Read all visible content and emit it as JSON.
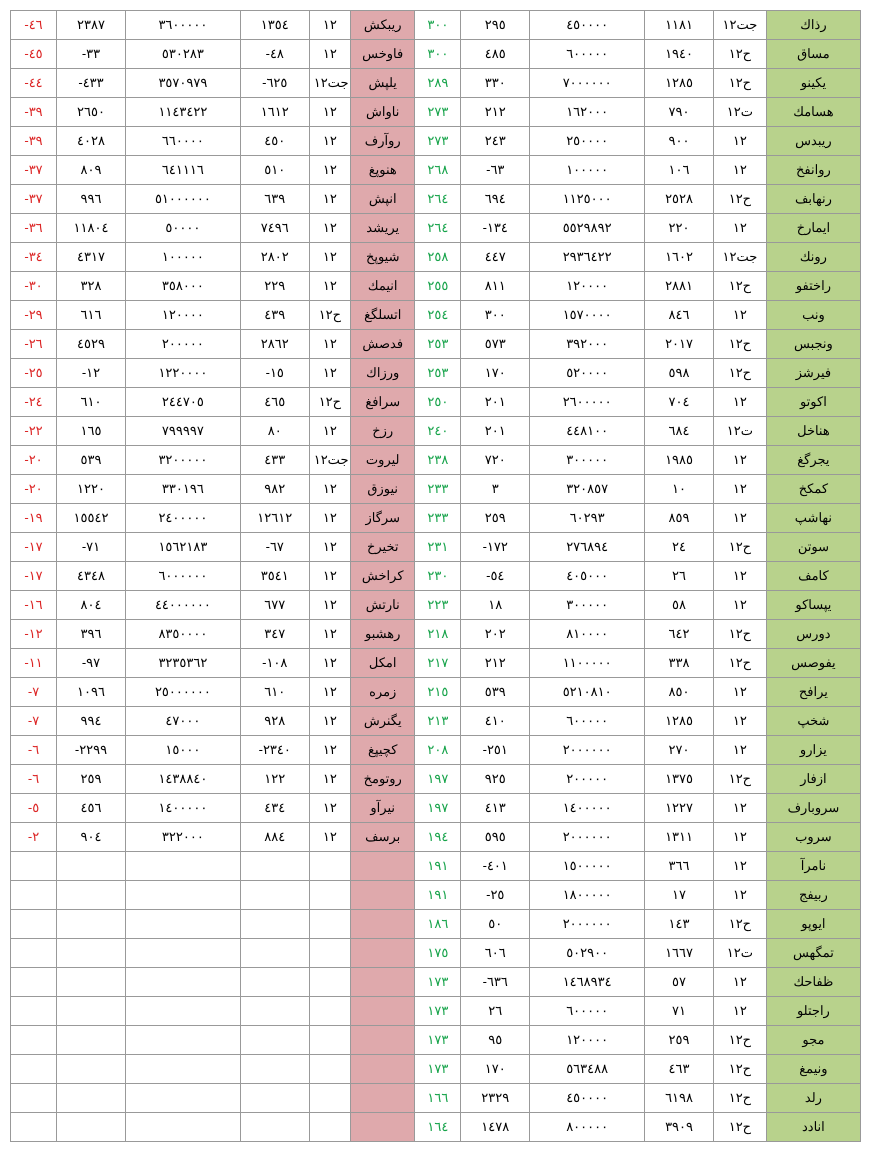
{
  "colors": {
    "name_r_bg": "#b8d28c",
    "name_l_bg": "#dfa9ac",
    "green": "#16a34a",
    "red": "#dc2626",
    "border": "#999999",
    "bg": "#ffffff"
  },
  "rows": [
    {
      "r": [
        "كاذر",
        "١٢تج",
        "١١٨١",
        "٤٥٠٠٠٠",
        "٢٩٥",
        "٣٠٠"
      ],
      "l": [
        "شكبير",
        "١٢",
        "١٣٥٤",
        "٣٦٠٠٠٠٠",
        "٢٣٨٧",
        "-٤٦"
      ]
    },
    {
      "r": [
        "قاسم",
        "١٢ح",
        "١٩٤٠",
        "٦٠٠٠٠٠",
        "٤٨٥",
        "٣٠٠"
      ],
      "l": [
        "سخواف",
        "١٢",
        "-٤٨",
        "٥٣٠٢٨٣",
        "-٣٣",
        "-٤٥"
      ]
    },
    {
      "r": [
        "ونيكي",
        "١٢ح",
        "١٢٨٥",
        "٧٠٠٠٠٠٠",
        "٣٣٠",
        "٢٨٩"
      ],
      "l": [
        "شپلي",
        "١٢تج",
        "-٦٢٥",
        "٣٥٧٠٩٧٩",
        "-٤٣٣",
        "-٤٤"
      ]
    },
    {
      "r": [
        "كماسه",
        "١٢ت",
        "٧٩٠",
        "١٦٢٠٠٠",
        "٢١٢",
        "٢٧٣"
      ],
      "l": [
        "شاوان",
        "١٢",
        "١٦١٢",
        "١١٤٣٤٢٢",
        "٢٦٥٠",
        "-٣٩"
      ]
    },
    {
      "r": [
        "سدبير",
        "١٢",
        "٩٠٠",
        "٢٥٠٠٠٠",
        "٢٤٣",
        "٢٧٣"
      ],
      "l": [
        "فرآور",
        "١٢",
        "٤٥٠",
        "٦٦٠٠٠٠",
        "٤٠٢٨",
        "-٣٩"
      ]
    },
    {
      "r": [
        "خفناور",
        "١٢",
        "١٠٦",
        "١٠٠٠٠٠",
        "-٦٣",
        "٢٦٨"
      ],
      "l": [
        "غپونه",
        "١٢",
        "٥١٠",
        "٦٤١١١٦",
        "٨٠٩",
        "-٣٧"
      ]
    },
    {
      "r": [
        "فباهنر",
        "١٢ح",
        "٢٥٢٨",
        "١١٢٥٠٠٠",
        "٦٩٤",
        "٢٦٤"
      ],
      "l": [
        "شپنا",
        "١٢",
        "٦٣٩",
        "٥١٠٠٠٠٠٠",
        "٩٩٦",
        "-٣٧"
      ]
    },
    {
      "r": [
        "خراميا",
        "١٢",
        "٢٢٠",
        "٥٥٢٩٨٩٢",
        "-١٣٤",
        "٢٦٤"
      ],
      "l": [
        "دشيري",
        "١٢",
        "٧٤٩٦",
        "٥٠٠٠٠",
        "١١٨٠٤",
        "-٣٦"
      ]
    },
    {
      "r": [
        "كنور",
        "١٢تج",
        "١٦٠٢",
        "٢٩٣٦٤٢٢",
        "٤٤٧",
        "٢٥٨"
      ],
      "l": [
        "خپويش",
        "١٢",
        "٢٨٠٢",
        "١٠٠٠٠٠",
        "٤٣١٧",
        "-٣٤"
      ]
    },
    {
      "r": [
        "وفتخار",
        "١٢ح",
        "٢٨٨١",
        "١٢٠٠٠٠",
        "٨١١",
        "٢٥٥"
      ],
      "l": [
        "كمينا",
        "١٢",
        "٢٢٩",
        "٣٥٨٠٠٠",
        "٣٢٨",
        "-٣٠"
      ]
    },
    {
      "r": [
        "بنو",
        "١٢",
        "٨٤٦",
        "١٥٧٠٠٠٠",
        "٣٠٠",
        "٢٥٤"
      ],
      "l": [
        "غگلستا",
        "١٢ح",
        "٤٣٩",
        "١٢٠٠٠٠",
        "٦١٦",
        "-٢٩"
      ]
    },
    {
      "r": [
        "سبجنو",
        "١٢ح",
        "٢٠١٧",
        "٣٩٢٠٠٠",
        "٥٧٣",
        "٢٥٣"
      ],
      "l": [
        "شصدف",
        "١٢",
        "٢٨٦٢",
        "٢٠٠٠٠٠",
        "٤٥٢٩",
        "-٢٦"
      ]
    },
    {
      "r": [
        "زشريف",
        "١٢ح",
        "٥٩٨",
        "٥٢٠٠٠٠",
        "١٧٠",
        "٢٥٣"
      ],
      "l": [
        "كازرو",
        "١٢",
        "-١٥",
        "١٢٢٠٠٠٠",
        "-١٢",
        "-٢٥"
      ]
    },
    {
      "r": [
        "وتوكا",
        "١٢",
        "٧٠٤",
        "٢٦٠٠٠٠٠",
        "٢٠١",
        "٢٥٠"
      ],
      "l": [
        "غفارس",
        "١٢ح",
        "٤٦٥",
        "٢٤٤٧٠٥",
        "٦١٠",
        "-٢٤"
      ]
    },
    {
      "r": [
        "لخانه",
        "١٢ت",
        "٦٨٤",
        "٤٤٨١٠٠",
        "٢٠١",
        "٢٤٠"
      ],
      "l": [
        "خزر",
        "١٢",
        "٨٠",
        "٧٩٩٩٩٧",
        "١٦٥",
        "-٢٢"
      ]
    },
    {
      "r": [
        "غگرجي",
        "١٢",
        "١٩٨٥",
        "٣٠٠٠٠٠",
        "٧٢٠",
        "٢٣٨"
      ],
      "l": [
        "توريل",
        "١٢تج",
        "٤٣٣",
        "٣٢٠٠٠٠٠",
        "٥٣٩",
        "-٢٠"
      ]
    },
    {
      "r": [
        "خكمك",
        "١٢",
        "١٠",
        "٣٢٠٨٥٧",
        "٣",
        "٢٣٣"
      ],
      "l": [
        "قزوين",
        "١٢",
        "٩٨٢",
        "٣٣٠١٩٦",
        "١٢٢٠",
        "-٢٠"
      ]
    },
    {
      "r": [
        "پشاهن",
        "١٢",
        "٨٥٩",
        "٦٠٢٩٣",
        "٢٥٩",
        "٢٣٣"
      ],
      "l": [
        "زاگرس",
        "١٢",
        "١٢٦١٢",
        "٢٤٠٠٠٠٠",
        "١٥٥٤٢",
        "-١٩"
      ]
    },
    {
      "r": [
        "نتوس",
        "١٢ح",
        "٢٤",
        "٢٧٦٨٩٤",
        "-١٧٢",
        "٢٣١"
      ],
      "l": [
        "خريخت",
        "١٢",
        "-٦٧",
        "١٥٦٢١٨٣",
        "-٧١",
        "-١٧"
      ]
    },
    {
      "r": [
        "فماك",
        "١٢",
        "٢٦",
        "٤٠٥٠٠٠",
        "-٥٤",
        "٢٣٠"
      ],
      "l": [
        "شخارك",
        "١٢",
        "٣٥٤١",
        "٦٠٠٠٠٠٠",
        "٤٣٤٨",
        "-١٧"
      ]
    },
    {
      "r": [
        "وكاسپي",
        "١٢",
        "٥٨",
        "٣٠٠٠٠٠",
        "١٨",
        "٢٢٣"
      ],
      "l": [
        "شتران",
        "١٢",
        "٦٧٧",
        "٤٤٠٠٠٠٠٠",
        "٨٠٤",
        "-١٦"
      ]
    },
    {
      "r": [
        "سرود",
        "١٢ح",
        "٦٤٢",
        "٨١٠٠٠٠",
        "٢٠٢",
        "٢١٨"
      ],
      "l": [
        "وبشهر",
        "١٢",
        "٣٤٧",
        "٨٣٥٠٠٠٠",
        "٣٩٦",
        "-١٢"
      ]
    },
    {
      "r": [
        "سصوفي",
        "١٢ح",
        "٣٣٨",
        "١١٠٠٠٠٠",
        "٢١٢",
        "٢١٧"
      ],
      "l": [
        "لكما",
        "١٢",
        "-١٠٨",
        "٣٢٣٥٣٦٢",
        "-٩٧",
        "-١١"
      ]
    },
    {
      "r": [
        "حفاري",
        "١٢",
        "٨٥٠",
        "٥٢١٠٨١٠",
        "٥٣٩",
        "٢١٥"
      ],
      "l": [
        "هرمز",
        "١٢",
        "٦١٠",
        "٢٥٠٠٠٠٠٠",
        "١٠٩٦",
        "-٧"
      ]
    },
    {
      "r": [
        "پخش",
        "١٢",
        "١٢٨٥",
        "٦٠٠٠٠٠",
        "٤١٠",
        "٢١٣"
      ],
      "l": [
        "شرنگي",
        "١٢",
        "٩٢٨",
        "٤٧٠٠٠",
        "٩٩٤",
        "-٧"
      ]
    },
    {
      "r": [
        "ورازي",
        "١٢",
        "٢٧٠",
        "٢٠٠٠٠٠٠",
        "-٢٥١",
        "٢٠٨"
      ],
      "l": [
        "غپيچك",
        "١٢",
        "-٢٣٤٠",
        "١٥٠٠٠",
        "-٢٢٩٩",
        "-٦"
      ]
    },
    {
      "r": [
        "رافزا",
        "١٢ح",
        "١٣٧٥",
        "٢٠٠٠٠٠",
        "٩٢٥",
        "١٩٧"
      ],
      "l": [
        "خموتور",
        "١٢",
        "١٢٢",
        "١٤٣٨٨٤٠",
        "٢٥٩",
        "-٦"
      ]
    },
    {
      "r": [
        "فرابورس",
        "١٢",
        "١٢٢٧",
        "١٤٠٠٠٠٠",
        "٤١٣",
        "١٩٧"
      ],
      "l": [
        "وآرين",
        "١٢",
        "٤٣٤",
        "١٤٠٠٠٠٠",
        "٤٥٦",
        "-٥"
      ]
    },
    {
      "r": [
        "بورس",
        "١٢",
        "١٣١١",
        "٢٠٠٠٠٠٠",
        "٥٩٥",
        "١٩٤"
      ],
      "l": [
        "فسرب",
        "١٢",
        "٨٨٤",
        "٣٢٢٠٠٠",
        "٩٠٤",
        "-٢"
      ]
    },
    {
      "r": [
        "آرمان",
        "١٢",
        "٣٦٦",
        "١٥٠٠٠٠٠",
        "-٤٠١",
        "١٩١"
      ],
      "l": [
        "",
        "",
        "",
        "",
        "",
        ""
      ]
    },
    {
      "r": [
        "جفيبر",
        "١٢",
        "١٧",
        "١٨٠٠٠٠٠",
        "-٢٥",
        "١٩١"
      ],
      "l": [
        "",
        "",
        "",
        "",
        "",
        ""
      ]
    },
    {
      "r": [
        "وپويا",
        "١٢ح",
        "١٤٣",
        "٢٠٠٠٠٠٠",
        "٥٠",
        "١٨٦"
      ],
      "l": [
        "",
        "",
        "",
        "",
        "",
        ""
      ]
    },
    {
      "r": [
        "سهگمت",
        "١٢ت",
        "١٦٦٧",
        "٥٠٢٩٠٠",
        "٦٠٦",
        "١٧٥"
      ],
      "l": [
        "",
        "",
        "",
        "",
        "",
        ""
      ]
    },
    {
      "r": [
        "كحافظ",
        "١٢",
        "٥٧",
        "١٤٦٨٩٣٤",
        "-٦٣٦",
        "١٧٣"
      ],
      "l": [
        "",
        "",
        "",
        "",
        "",
        ""
      ]
    },
    {
      "r": [
        "ولتجار",
        "١٢",
        "٧١",
        "٦٠٠٠٠٠",
        "٢٦",
        "١٧٣"
      ],
      "l": [
        "",
        "",
        "",
        "",
        "",
        ""
      ]
    },
    {
      "r": [
        "وجم",
        "١٢ح",
        "٢٥٩",
        "١٢٠٠٠٠",
        "٩٥",
        "١٧٣"
      ],
      "l": [
        "",
        "",
        "",
        "",
        "",
        ""
      ]
    },
    {
      "r": [
        "غمينو",
        "١٢ح",
        "٤٦٣",
        "٥٦٣٤٨٨",
        "١٧٠",
        "١٧٣"
      ],
      "l": [
        "",
        "",
        "",
        "",
        "",
        ""
      ]
    },
    {
      "r": [
        "دلر",
        "١٢ح",
        "٦١٩٨",
        "٤٥٠٠٠٠",
        "٢٣٢٩",
        "١٦٦"
      ],
      "l": [
        "",
        "",
        "",
        "",
        "",
        ""
      ]
    },
    {
      "r": [
        "ددانا",
        "١٢ح",
        "٣٩٠٩",
        "٨٠٠٠٠٠",
        "١٤٧٨",
        "١٦٤"
      ],
      "l": [
        "",
        "",
        "",
        "",
        "",
        ""
      ]
    }
  ]
}
